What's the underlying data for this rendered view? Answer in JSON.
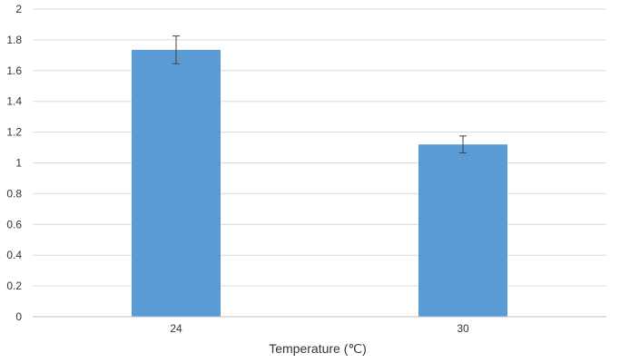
{
  "chart_data": {
    "type": "bar",
    "title": "",
    "xlabel": "Temperature (℃)",
    "ylabel": "",
    "categories": [
      "24",
      "30"
    ],
    "values": [
      1.735,
      1.12
    ],
    "error": [
      0.09,
      0.055
    ],
    "ylim": [
      0,
      2
    ],
    "yticks": [
      "0",
      "0.2",
      "0.4",
      "0.6",
      "0.8",
      "1",
      "1.2",
      "1.4",
      "1.6",
      "1.8",
      "2"
    ],
    "grid": true,
    "legend": "none",
    "bar_color": "#5B9BD5",
    "grid_color": "#D9D9D9",
    "errorbar_color": "#404040"
  }
}
